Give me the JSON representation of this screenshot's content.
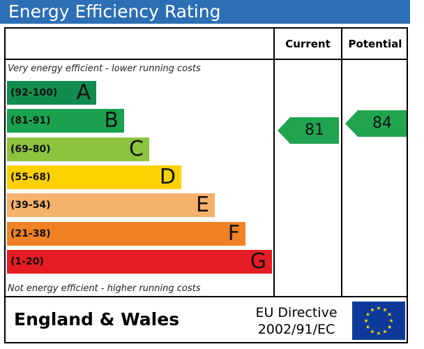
{
  "header": {
    "title": "Energy Efficiency Rating"
  },
  "columns": {
    "current": "Current",
    "potential": "Potential"
  },
  "captions": {
    "top": "Very energy efficient - lower running costs",
    "bottom": "Not energy efficient - higher running costs"
  },
  "chart_data": {
    "type": "bar",
    "bands": [
      {
        "range": "(92-100)",
        "letter": "A",
        "color": "#118c4f"
      },
      {
        "range": "(81-91)",
        "letter": "B",
        "color": "#1ba24f"
      },
      {
        "range": "(69-80)",
        "letter": "C",
        "color": "#8cc43f"
      },
      {
        "range": "(55-68)",
        "letter": "D",
        "color": "#ffd000"
      },
      {
        "range": "(39-54)",
        "letter": "E",
        "color": "#f6b16a"
      },
      {
        "range": "(21-38)",
        "letter": "F",
        "color": "#f08224"
      },
      {
        "range": "(1-20)",
        "letter": "G",
        "color": "#e51c23"
      }
    ],
    "current": {
      "value": "81",
      "band": "B",
      "color": "#20a450"
    },
    "potential": {
      "value": "84",
      "band": "B",
      "color": "#20a450"
    }
  },
  "footer": {
    "region": "England & Wales",
    "directive_line1": "EU Directive",
    "directive_line2": "2002/91/EC"
  },
  "flag": {
    "icon": "eu-flag-icon",
    "background": "#0d3a9a",
    "stars": "#ffd400"
  }
}
